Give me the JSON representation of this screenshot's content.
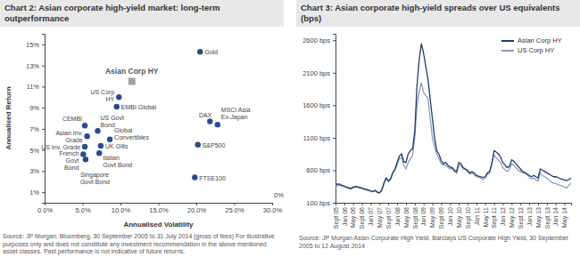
{
  "chart_data": [
    {
      "type": "scatter",
      "title": "Chart 2: Asian corporate high-yield market: long-term outperformance",
      "source": "Source: JP Morgan, Bloomberg, 30 September 2005 to 31 July 2014 (gross of fees) For illustrative purposes only and does not constitute any investment recommendation in the above mentioned asset classes. Past performance is not indicative of future returns.",
      "x_label": "Annualised Volatility",
      "y_label": "Annualised Return",
      "annotations": [
        "0%"
      ],
      "grid": false,
      "xlim": [
        0,
        30
      ],
      "ylim": [
        0,
        16
      ],
      "xticks": [
        {
          "value": 0,
          "label": "0.0%"
        },
        {
          "value": 5,
          "label": "5.0%"
        },
        {
          "value": 10,
          "label": "10.0%"
        },
        {
          "value": 15,
          "label": "15.0%"
        },
        {
          "value": 20,
          "label": "20.0%"
        },
        {
          "value": 25,
          "label": "25.0%"
        },
        {
          "value": 30,
          "label": "30.0%"
        }
      ],
      "yticks": [
        {
          "value": 1,
          "label": "1%"
        },
        {
          "value": 3,
          "label": "3%"
        },
        {
          "value": 5,
          "label": "5%"
        },
        {
          "value": 7,
          "label": "7%"
        },
        {
          "value": 9,
          "label": "9%"
        },
        {
          "value": 11,
          "label": "11%"
        },
        {
          "value": 13,
          "label": "13%"
        },
        {
          "value": 15,
          "label": "15%"
        }
      ],
      "series": [
        {
          "name": "Gold",
          "color": "#2a4b8d",
          "marker": "circle",
          "x": [
            20.5
          ],
          "values": [
            14.3
          ]
        },
        {
          "name": "Asian Corp HY",
          "color": "#a3a3a3",
          "marker": "square",
          "x": [
            11.5
          ],
          "values": [
            11.5
          ]
        },
        {
          "name": "US Corp HY",
          "color": "#2a4b8d",
          "marker": "circle",
          "x": [
            9.8
          ],
          "values": [
            10.0
          ]
        },
        {
          "name": "EMBI Global",
          "color": "#2a4b8d",
          "marker": "circle",
          "x": [
            9.5
          ],
          "values": [
            9.1
          ]
        },
        {
          "name": "CEMBI",
          "color": "#2a4b8d",
          "marker": "circle",
          "x": [
            5.3
          ],
          "values": [
            7.3
          ]
        },
        {
          "name": "Asian Inv. Grade",
          "color": "#2a4b8d",
          "marker": "circle",
          "x": [
            5.6
          ],
          "values": [
            6.3
          ]
        },
        {
          "name": "US Govt Bond",
          "color": "#2a4b8d",
          "marker": "circle",
          "x": [
            7.0
          ],
          "values": [
            6.8
          ]
        },
        {
          "name": "Global Convertibles",
          "color": "#2a4b8d",
          "marker": "circle",
          "x": [
            8.6
          ],
          "values": [
            6.0
          ]
        },
        {
          "name": "US Inv. Grade",
          "color": "#2a4b8d",
          "marker": "circle",
          "x": [
            5.3
          ],
          "values": [
            5.3
          ]
        },
        {
          "name": "UK Gilts",
          "color": "#2a4b8d",
          "marker": "circle",
          "x": [
            7.4
          ],
          "values": [
            5.4
          ]
        },
        {
          "name": "Italian Govt Bond",
          "color": "#2a4b8d",
          "marker": "circle",
          "x": [
            7.2
          ],
          "values": [
            4.7
          ]
        },
        {
          "name": "French Govt Bond",
          "color": "#2a4b8d",
          "marker": "circle",
          "x": [
            5.1
          ],
          "values": [
            4.6
          ]
        },
        {
          "name": "Singapore Govt Bond",
          "color": "#2a4b8d",
          "marker": "circle",
          "x": [
            5.4
          ],
          "values": [
            4.1
          ]
        },
        {
          "name": "DAX",
          "color": "#2a4b8d",
          "marker": "circle",
          "x": [
            21.8
          ],
          "values": [
            7.7
          ]
        },
        {
          "name": "MSCI Asia Ex-Japan",
          "color": "#2a4b8d",
          "marker": "circle",
          "x": [
            22.8
          ],
          "values": [
            7.4
          ]
        },
        {
          "name": "S&P500",
          "color": "#2a4b8d",
          "marker": "circle",
          "x": [
            20.2
          ],
          "values": [
            5.5
          ]
        },
        {
          "name": "FTSE100",
          "color": "#2a4b8d",
          "marker": "circle",
          "x": [
            19.8
          ],
          "values": [
            2.4
          ]
        }
      ]
    },
    {
      "type": "line",
      "title": "Chart 3: Asian corporate high-yield spreads over US equivalents (bps)",
      "source": "Source: JP Morgan Asian Corporate High Yield, Barclays US Corporate High Yield, 30 September 2005 to 12 August 2014",
      "grid": false,
      "legend": "top-right",
      "ylim": [
        100,
        2700
      ],
      "yticks": [
        {
          "value": 100,
          "label": "100 bps"
        },
        {
          "value": 600,
          "label": "600 bps"
        },
        {
          "value": 1100,
          "label": "1100 bps"
        },
        {
          "value": 1600,
          "label": "1600 bps"
        },
        {
          "value": 2100,
          "label": "2100 bps"
        },
        {
          "value": 2600,
          "label": "2600 bps"
        }
      ],
      "categories": [
        "Sept 05",
        null,
        null,
        null,
        "Jan 06",
        null,
        null,
        null,
        "May 06",
        null,
        null,
        null,
        "Sept 06",
        null,
        null,
        null,
        "Jan 07",
        null,
        null,
        null,
        "May 07",
        null,
        null,
        null,
        "Sept 07",
        null,
        null,
        null,
        "Jan 08",
        null,
        null,
        null,
        "May 08",
        null,
        null,
        null,
        "Sept 08",
        null,
        null,
        null,
        "Jan 09",
        null,
        null,
        null,
        "May 09",
        null,
        null,
        null,
        "Sept 09",
        null,
        null,
        null,
        "Jan 10",
        null,
        null,
        null,
        "May 10",
        null,
        null,
        null,
        "Sept 10",
        null,
        null,
        null,
        "Jan 11",
        null,
        null,
        null,
        "May 11",
        null,
        null,
        null,
        "Sept 11",
        null,
        null,
        null,
        "Jan 12",
        null,
        null,
        null,
        "May 12",
        null,
        null,
        null,
        "Sept 12",
        null,
        null,
        null,
        "Jan 13",
        null,
        null,
        null,
        "May 13",
        null,
        null,
        null,
        "Sept 13",
        null,
        null,
        null,
        "Jan 14",
        null,
        null,
        null,
        "May 14",
        null,
        null,
        null
      ],
      "series": [
        {
          "name": "Asian Corp HY",
          "color": "#1f3d73",
          "line_style": "solid",
          "values": [
            380,
            390,
            385,
            370,
            360,
            340,
            330,
            320,
            340,
            350,
            340,
            330,
            320,
            310,
            300,
            290,
            280,
            270,
            290,
            260,
            250,
            290,
            400,
            480,
            430,
            470,
            560,
            620,
            720,
            820,
            850,
            730,
            720,
            850,
            900,
            930,
            1200,
            1900,
            2300,
            2550,
            2400,
            2200,
            2000,
            1700,
            1400,
            1100,
            900,
            850,
            750,
            700,
            720,
            680,
            650,
            640,
            600,
            580,
            720,
            700,
            640,
            620,
            600,
            560,
            580,
            560,
            520,
            510,
            500,
            490,
            500,
            560,
            580,
            700,
            900,
            880,
            850,
            800,
            720,
            680,
            640,
            660,
            760,
            740,
            700,
            660,
            620,
            580,
            560,
            540,
            520,
            500,
            520,
            500,
            480,
            620,
            600,
            580,
            560,
            540,
            520,
            500,
            500,
            490,
            470,
            460,
            450,
            440,
            460,
            480
          ]
        },
        {
          "name": "US Corp HY",
          "color": "#8c9fb5",
          "line_style": "solid",
          "values": [
            360,
            370,
            365,
            350,
            340,
            330,
            320,
            310,
            330,
            340,
            350,
            340,
            330,
            320,
            310,
            300,
            280,
            270,
            290,
            270,
            260,
            300,
            400,
            480,
            440,
            450,
            560,
            600,
            680,
            780,
            800,
            680,
            620,
            720,
            780,
            820,
            1100,
            1600,
            1800,
            1950,
            1800,
            1750,
            1700,
            1400,
            1100,
            950,
            850,
            780,
            700,
            680,
            680,
            650,
            620,
            630,
            580,
            550,
            680,
            680,
            620,
            610,
            580,
            540,
            560,
            530,
            500,
            490,
            480,
            460,
            480,
            540,
            560,
            720,
            840,
            790,
            760,
            720,
            640,
            610,
            580,
            610,
            700,
            680,
            640,
            600,
            580,
            560,
            570,
            540,
            490,
            470,
            480,
            460,
            430,
            560,
            520,
            500,
            480,
            450,
            420,
            400,
            400,
            380,
            370,
            360,
            340,
            330,
            370,
            400
          ]
        }
      ]
    }
  ]
}
